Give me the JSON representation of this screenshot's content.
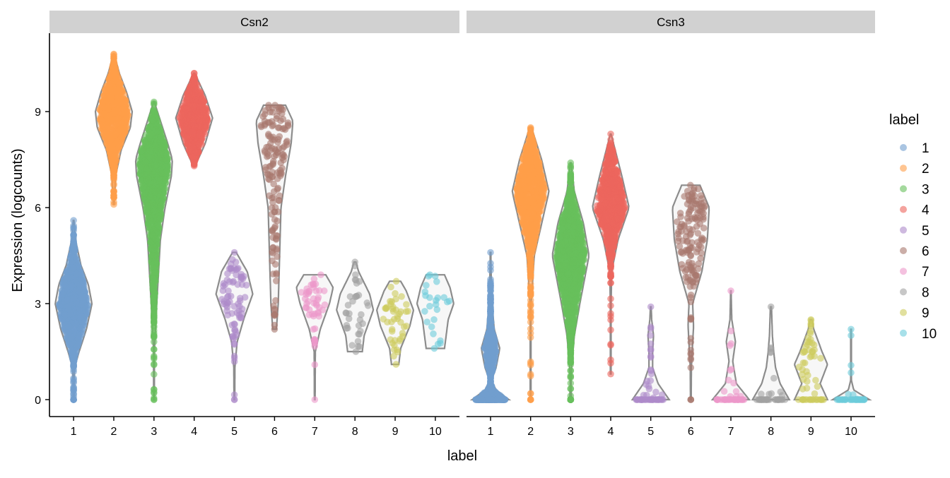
{
  "chart_data": {
    "type": "violin",
    "xlabel": "label",
    "ylabel": "Expression (logcounts)",
    "ylim": [
      -0.53,
      11.45
    ],
    "yticks": [
      0,
      3,
      6,
      9
    ],
    "categories": [
      "1",
      "2",
      "3",
      "4",
      "5",
      "6",
      "7",
      "8",
      "9",
      "10"
    ],
    "grid": false,
    "legend": {
      "title": "label",
      "position": "right",
      "entries": [
        "1",
        "2",
        "3",
        "4",
        "5",
        "6",
        "7",
        "8",
        "9",
        "10"
      ]
    },
    "colors": [
      "#729ECE",
      "#FF9E4A",
      "#67BF5C",
      "#ED665D",
      "#AD8BC9",
      "#A8786E",
      "#ED97CA",
      "#A2A2A2",
      "#CDCC5D",
      "#6DCCDA"
    ],
    "violin_color": "#8C8C8C",
    "panels": [
      {
        "title": "Csn2",
        "groups": [
          {
            "label": "1",
            "n": 800,
            "zero_fraction": 0.01,
            "min": 0,
            "max": 5.6,
            "density": [
              [
                0,
                0.02
              ],
              [
                1,
                0.05
              ],
              [
                1.5,
                0.3
              ],
              [
                2.2,
                0.7
              ],
              [
                3,
                1
              ],
              [
                3.6,
                0.8
              ],
              [
                4.2,
                0.4
              ],
              [
                5,
                0.1
              ],
              [
                5.6,
                0.02
              ]
            ]
          },
          {
            "label": "2",
            "n": 800,
            "zero_fraction": 0,
            "min": 6.1,
            "max": 10.8,
            "density": [
              [
                6.1,
                0.02
              ],
              [
                7,
                0.1
              ],
              [
                7.8,
                0.4
              ],
              [
                8.5,
                0.9
              ],
              [
                9,
                1
              ],
              [
                9.6,
                0.7
              ],
              [
                10.2,
                0.3
              ],
              [
                10.8,
                0.02
              ]
            ]
          },
          {
            "label": "3",
            "n": 1200,
            "zero_fraction": 0.001,
            "min": 0,
            "max": 9.3,
            "density": [
              [
                0,
                0.01
              ],
              [
                1.5,
                0.02
              ],
              [
                3,
                0.15
              ],
              [
                4,
                0.25
              ],
              [
                5,
                0.35
              ],
              [
                6,
                0.6
              ],
              [
                7,
                0.95
              ],
              [
                7.5,
                1
              ],
              [
                8,
                0.75
              ],
              [
                8.8,
                0.3
              ],
              [
                9.3,
                0.02
              ]
            ]
          },
          {
            "label": "4",
            "n": 600,
            "zero_fraction": 0,
            "min": 7.3,
            "max": 10.2,
            "density": [
              [
                7.3,
                0.05
              ],
              [
                8,
                0.6
              ],
              [
                8.8,
                1
              ],
              [
                9.5,
                0.6
              ],
              [
                10.2,
                0.03
              ]
            ]
          },
          {
            "label": "5",
            "n": 80,
            "zero_fraction": 0.012,
            "min": 0,
            "max": 4.6,
            "density": [
              [
                0,
                0.02
              ],
              [
                1,
                0.03
              ],
              [
                1.8,
                0.15
              ],
              [
                2.5,
                0.5
              ],
              [
                3.3,
                1
              ],
              [
                4,
                0.7
              ],
              [
                4.6,
                0.1
              ]
            ]
          },
          {
            "label": "6",
            "n": 150,
            "zero_fraction": 0,
            "min": 2.2,
            "max": 9.2,
            "density": [
              [
                2.2,
                0.1
              ],
              [
                3,
                0.2
              ],
              [
                4,
                0.25
              ],
              [
                5,
                0.3
              ],
              [
                6,
                0.35
              ],
              [
                7,
                0.6
              ],
              [
                8,
                0.9
              ],
              [
                8.7,
                1
              ],
              [
                9.2,
                0.6
              ]
            ]
          },
          {
            "label": "7",
            "n": 50,
            "zero_fraction": 0.02,
            "min": 0,
            "max": 3.9,
            "density": [
              [
                0,
                0.02
              ],
              [
                1.5,
                0.03
              ],
              [
                2.2,
                0.3
              ],
              [
                3,
                0.8
              ],
              [
                3.5,
                1
              ],
              [
                3.9,
                0.6
              ]
            ]
          },
          {
            "label": "8",
            "n": 35,
            "zero_fraction": 0,
            "min": 1.5,
            "max": 4.3,
            "density": [
              [
                1.5,
                0.4
              ],
              [
                2,
                0.5
              ],
              [
                2.8,
                1
              ],
              [
                3.3,
                0.8
              ],
              [
                4,
                0.2
              ],
              [
                4.3,
                0.05
              ]
            ]
          },
          {
            "label": "9",
            "n": 45,
            "zero_fraction": 0,
            "min": 1.1,
            "max": 3.7,
            "density": [
              [
                1.1,
                0.2
              ],
              [
                1.6,
                0.3
              ],
              [
                2.3,
                0.8
              ],
              [
                2.8,
                1
              ],
              [
                3.4,
                0.6
              ],
              [
                3.7,
                0.3
              ]
            ]
          },
          {
            "label": "10",
            "n": 25,
            "zero_fraction": 0,
            "min": 1.6,
            "max": 3.9,
            "density": [
              [
                1.6,
                0.5
              ],
              [
                2.5,
                0.7
              ],
              [
                3,
                1
              ],
              [
                3.5,
                0.8
              ],
              [
                3.9,
                0.5
              ]
            ]
          }
        ]
      },
      {
        "title": "Csn3",
        "groups": [
          {
            "label": "1",
            "n": 700,
            "zero_fraction": 0.3,
            "min": 0,
            "max": 4.6,
            "density": [
              [
                0,
                1
              ],
              [
                0.3,
                0.3
              ],
              [
                0.6,
                0.05
              ],
              [
                1,
                0.3
              ],
              [
                1.6,
                0.5
              ],
              [
                2.2,
                0.2
              ],
              [
                3,
                0.08
              ],
              [
                4,
                0.03
              ],
              [
                4.6,
                0.01
              ]
            ]
          },
          {
            "label": "2",
            "n": 900,
            "zero_fraction": 0.002,
            "min": 0,
            "max": 8.5,
            "density": [
              [
                0,
                0.01
              ],
              [
                1.5,
                0.01
              ],
              [
                3,
                0.03
              ],
              [
                4.5,
                0.2
              ],
              [
                5.5,
                0.6
              ],
              [
                6.5,
                1
              ],
              [
                7.5,
                0.6
              ],
              [
                8.5,
                0.05
              ]
            ]
          },
          {
            "label": "3",
            "n": 1200,
            "zero_fraction": 0.02,
            "min": 0,
            "max": 7.4,
            "density": [
              [
                0,
                0.05
              ],
              [
                0.5,
                0.02
              ],
              [
                1,
                0.05
              ],
              [
                2,
                0.2
              ],
              [
                3,
                0.5
              ],
              [
                4.5,
                1
              ],
              [
                5.5,
                0.7
              ],
              [
                6.5,
                0.2
              ],
              [
                7.4,
                0.02
              ]
            ]
          },
          {
            "label": "4",
            "n": 700,
            "zero_fraction": 0,
            "min": 0.8,
            "max": 8.3,
            "density": [
              [
                0.8,
                0.02
              ],
              [
                2.5,
                0.01
              ],
              [
                4,
                0.05
              ],
              [
                5,
                0.4
              ],
              [
                6,
                1
              ],
              [
                7,
                0.6
              ],
              [
                8.3,
                0.02
              ]
            ]
          },
          {
            "label": "5",
            "n": 60,
            "zero_fraction": 0.6,
            "min": 0,
            "max": 2.9,
            "density": [
              [
                0,
                1
              ],
              [
                0.5,
                0.4
              ],
              [
                1,
                0.1
              ],
              [
                1.5,
                0.1
              ],
              [
                2,
                0.15
              ],
              [
                2.5,
                0.05
              ],
              [
                2.9,
                0.02
              ]
            ]
          },
          {
            "label": "6",
            "n": 150,
            "zero_fraction": 0.01,
            "min": 0,
            "max": 6.7,
            "density": [
              [
                0,
                0.02
              ],
              [
                1,
                0.03
              ],
              [
                2.3,
                0.15
              ],
              [
                3,
                0.1
              ],
              [
                4,
                0.6
              ],
              [
                5,
                0.9
              ],
              [
                6,
                1
              ],
              [
                6.7,
                0.5
              ]
            ]
          },
          {
            "label": "7",
            "n": 50,
            "zero_fraction": 0.6,
            "min": 0,
            "max": 3.4,
            "density": [
              [
                0,
                1
              ],
              [
                0.5,
                0.3
              ],
              [
                1.2,
                0.1
              ],
              [
                1.8,
                0.25
              ],
              [
                2.5,
                0.05
              ],
              [
                3.4,
                0.01
              ]
            ]
          },
          {
            "label": "8",
            "n": 45,
            "zero_fraction": 0.7,
            "min": 0,
            "max": 2.9,
            "density": [
              [
                0,
                1
              ],
              [
                0.5,
                0.5
              ],
              [
                1,
                0.25
              ],
              [
                1.5,
                0.15
              ],
              [
                2,
                0.08
              ],
              [
                2.9,
                0.03
              ]
            ]
          },
          {
            "label": "9",
            "n": 60,
            "zero_fraction": 0.4,
            "min": 0,
            "max": 2.5,
            "density": [
              [
                0,
                0.9
              ],
              [
                0.5,
                0.5
              ],
              [
                1.1,
                0.9
              ],
              [
                1.5,
                0.6
              ],
              [
                2.2,
                0.15
              ],
              [
                2.5,
                0.05
              ]
            ]
          },
          {
            "label": "10",
            "n": 40,
            "zero_fraction": 0.8,
            "min": 0,
            "max": 2.2,
            "density": [
              [
                0,
                1
              ],
              [
                0.3,
                0.15
              ],
              [
                0.6,
                0.02
              ],
              [
                1.5,
                0.02
              ],
              [
                2.2,
                0.01
              ]
            ]
          }
        ]
      }
    ]
  }
}
